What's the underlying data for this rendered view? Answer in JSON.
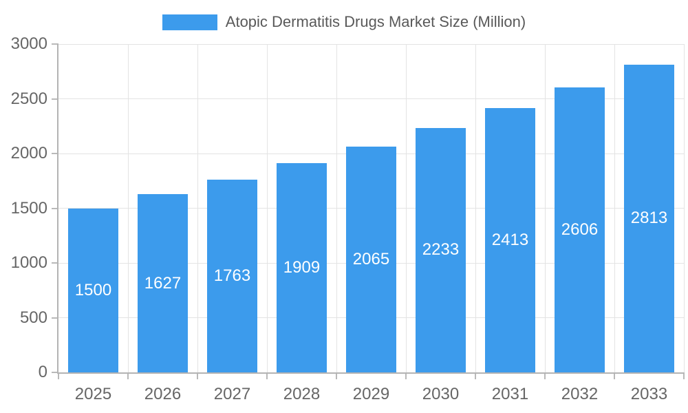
{
  "legend": {
    "label": "Atopic Dermatitis Drugs Market Size (Million)"
  },
  "chart_data": {
    "type": "bar",
    "title": "Atopic Dermatitis Drugs Market Size (Million)",
    "categories": [
      "2025",
      "2026",
      "2027",
      "2028",
      "2029",
      "2030",
      "2031",
      "2032",
      "2033"
    ],
    "values": [
      1500,
      1627,
      1763,
      1909,
      2065,
      2233,
      2413,
      2606,
      2813
    ],
    "xlabel": "",
    "ylabel": "",
    "ylim": [
      0,
      3000
    ],
    "yticks": [
      0,
      500,
      1000,
      1500,
      2000,
      2500,
      3000
    ],
    "grid": true,
    "legend_position": "top",
    "value_label_position": "inside-center",
    "colors": {
      "bar": "#3C9BEC",
      "value_label": "#ffffff",
      "axis_text": "#666666",
      "legend_text": "#595959",
      "grid": "#e3e3e3",
      "tick": "#b9b9b9",
      "axis_line": "#b3b3b3",
      "background": "#ffffff"
    }
  }
}
